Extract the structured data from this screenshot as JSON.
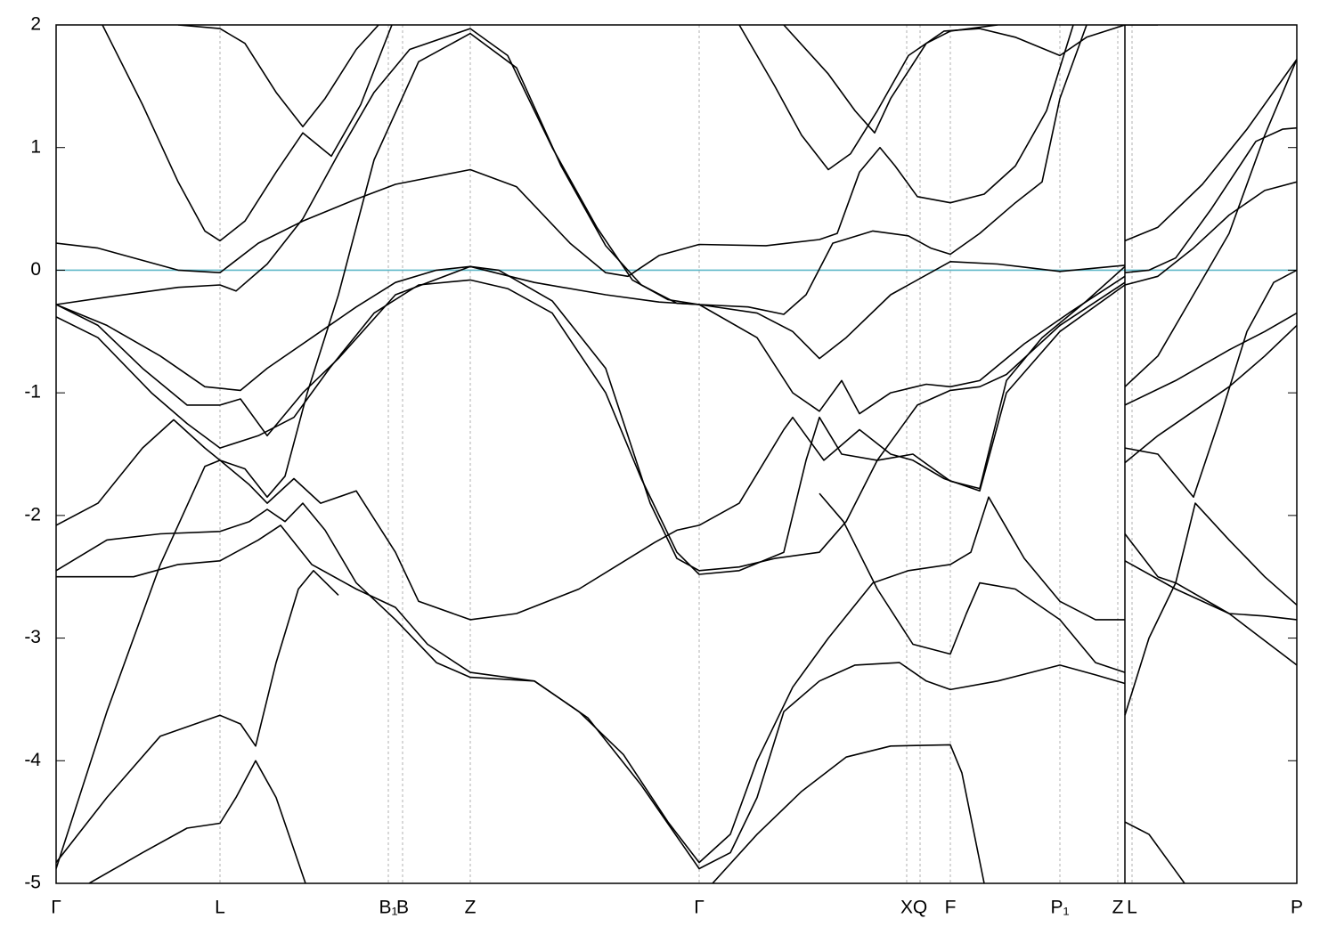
{
  "chart_data": {
    "type": "line",
    "xlim": [
      63,
      1456
    ],
    "ylim": [
      -5,
      2
    ],
    "yticks": [
      -5,
      -4,
      -3,
      -2,
      -1,
      0,
      1,
      2
    ],
    "xticks": [
      {
        "value": 63,
        "label": "Γ"
      },
      {
        "value": 247,
        "label": "L"
      },
      {
        "value": 436,
        "label": "B₁"
      },
      {
        "value": 452,
        "label": "B"
      },
      {
        "value": 528,
        "label": "Z"
      },
      {
        "value": 785,
        "label": "Γ"
      },
      {
        "value": 1018,
        "label": "X"
      },
      {
        "value": 1033,
        "label": "Q"
      },
      {
        "value": 1067,
        "label": "F"
      },
      {
        "value": 1190,
        "label": "P₁"
      },
      {
        "value": 1255,
        "label": "Z"
      },
      {
        "value": 1271,
        "label": "L"
      },
      {
        "value": 1456,
        "label": "P"
      }
    ],
    "xgrid": true,
    "hline": 0,
    "hline_color": "#5fb8c8",
    "series": [
      {
        "color": "#000000",
        "x": [
          115,
          160,
          200,
          230,
          247,
          275,
          310,
          340,
          372,
          405,
          440
        ],
        "values": [
          2,
          1.35,
          0.72,
          0.32,
          0.24,
          0.4,
          0.8,
          1.12,
          0.93,
          1.35,
          2
        ]
      },
      {
        "color": "#000000",
        "x": [
          200,
          247,
          275,
          310,
          340,
          365,
          400,
          425
        ],
        "values": [
          2,
          1.97,
          1.85,
          1.45,
          1.17,
          1.4,
          1.8,
          2
        ]
      },
      {
        "color": "#000000",
        "x": [
          63,
          110,
          160,
          200,
          247,
          290,
          340,
          400,
          444,
          528,
          580,
          640,
          680,
          705,
          740,
          785,
          860,
          920,
          940,
          965,
          988,
          1005,
          1030,
          1067,
          1105,
          1140,
          1175,
          1205
        ],
        "values": [
          0.22,
          0.18,
          0.08,
          0,
          -0.02,
          0.22,
          0.4,
          0.58,
          0.7,
          0.82,
          0.68,
          0.22,
          -0.02,
          -0.05,
          0.12,
          0.21,
          0.2,
          0.25,
          0.3,
          0.8,
          1,
          0.85,
          0.6,
          0.55,
          0.62,
          0.85,
          1.3,
          2
        ]
      },
      {
        "color": "#000000",
        "x": [
          830,
          870,
          900,
          930,
          955,
          985,
          1020,
          1060,
          1100,
          1140,
          1190,
          1220,
          1263
        ],
        "values": [
          2,
          1.5,
          1.1,
          0.82,
          0.95,
          1.3,
          1.75,
          1.95,
          1.97,
          1.9,
          1.75,
          1.9,
          2
        ]
      },
      {
        "color": "#000000",
        "x": [
          880,
          930,
          960,
          982,
          1000,
          1040,
          1067,
          1120
        ],
        "values": [
          2,
          1.6,
          1.3,
          1.12,
          1.4,
          1.85,
          1.95,
          2
        ]
      },
      {
        "color": "#000000",
        "x": [
          63,
          120,
          200,
          247,
          265,
          300,
          340,
          380,
          420,
          460,
          528,
          570,
          620,
          670,
          710,
          750,
          785,
          840,
          880,
          905,
          935,
          980,
          1020,
          1045,
          1067,
          1100,
          1140,
          1170,
          1190,
          1220
        ],
        "values": [
          -0.28,
          -0.22,
          -0.14,
          -0.12,
          -0.17,
          0.05,
          0.42,
          0.95,
          1.45,
          1.8,
          1.97,
          1.75,
          1,
          0.35,
          -0.08,
          -0.24,
          -0.28,
          -0.3,
          -0.36,
          -0.2,
          0.22,
          0.32,
          0.28,
          0.18,
          0.13,
          0.3,
          0.55,
          0.72,
          1.4,
          2
        ]
      },
      {
        "color": "#000000",
        "x": [
          63,
          120,
          180,
          230,
          247,
          275,
          300,
          320,
          345,
          380,
          420,
          470,
          528,
          580,
          630,
          680,
          720,
          760,
          785,
          850,
          890,
          920,
          950,
          1000,
          1067,
          1120,
          1190,
          1263
        ],
        "values": [
          -4.88,
          -3.6,
          -2.4,
          -1.6,
          -1.55,
          -1.62,
          -1.85,
          -1.68,
          -1,
          -0.2,
          0.9,
          1.7,
          1.93,
          1.65,
          0.85,
          0.2,
          -0.12,
          -0.27,
          -0.28,
          -0.35,
          -0.5,
          -0.72,
          -0.55,
          -0.2,
          0.07,
          0.05,
          -0.01,
          0.04
        ]
      },
      {
        "color": "#000000",
        "x": [
          63,
          120,
          180,
          230,
          270,
          300,
          350,
          400,
          444,
          490,
          528,
          560,
          620,
          680,
          730,
          760,
          785,
          830,
          870,
          920,
          950,
          985,
          1030,
          1067,
          1100,
          1130,
          1190,
          1263
        ],
        "values": [
          -0.28,
          -0.45,
          -0.7,
          -0.95,
          -0.98,
          -0.8,
          -0.55,
          -0.3,
          -0.1,
          0,
          0.03,
          0,
          -0.25,
          -0.8,
          -1.9,
          -2.35,
          -2.45,
          -2.42,
          -2.35,
          -2.3,
          -2.05,
          -1.55,
          -1.1,
          -0.98,
          -0.95,
          -0.85,
          -0.45,
          -0.1
        ]
      },
      {
        "color": "#000000",
        "x": [
          63,
          110,
          170,
          210,
          247,
          290,
          330,
          370,
          420,
          470,
          528,
          570,
          620,
          680,
          720,
          760,
          785,
          830,
          880,
          905,
          920,
          945,
          985,
          1025,
          1067,
          1100,
          1130,
          1170,
          1220,
          1263
        ],
        "values": [
          -0.38,
          -0.55,
          -1,
          -1.25,
          -1.45,
          -1.35,
          -1.2,
          -0.8,
          -0.35,
          -0.12,
          -0.08,
          -0.15,
          -0.35,
          -1,
          -1.7,
          -2.3,
          -2.48,
          -2.45,
          -2.3,
          -1.55,
          -1.2,
          -1.5,
          -1.55,
          -1.5,
          -1.72,
          -1.78,
          -0.9,
          -0.55,
          -0.25,
          0.03
        ]
      },
      {
        "color": "#000000",
        "x": [
          63,
          110,
          160,
          210,
          247,
          270,
          300,
          340,
          380,
          444,
          528,
          600,
          680,
          740,
          785,
          850,
          890,
          920,
          945,
          965,
          1000,
          1040,
          1067,
          1100,
          1150,
          1200,
          1263
        ],
        "values": [
          -0.28,
          -0.45,
          -0.8,
          -1.1,
          -1.1,
          -1.05,
          -1.35,
          -1,
          -0.72,
          -0.2,
          0.03,
          -0.1,
          -0.2,
          -0.26,
          -0.28,
          -0.55,
          -1,
          -1.15,
          -0.9,
          -1.17,
          -1,
          -0.93,
          -0.95,
          -0.9,
          -0.6,
          -0.35,
          -0.05
        ]
      },
      {
        "color": "#000000",
        "x": [
          63,
          110,
          160,
          195,
          230,
          247,
          280,
          300,
          330,
          360,
          400,
          444,
          470,
          528,
          580,
          650,
          735,
          760,
          785,
          830,
          880,
          890,
          925,
          965,
          1000,
          1025,
          1060,
          1100,
          1130,
          1190,
          1263
        ],
        "values": [
          -2.08,
          -1.9,
          -1.45,
          -1.22,
          -1.45,
          -1.55,
          -1.75,
          -1.9,
          -1.7,
          -1.9,
          -1.8,
          -2.3,
          -2.7,
          -2.85,
          -2.8,
          -2.6,
          -2.22,
          -2.12,
          -2.08,
          -1.9,
          -1.3,
          -1.2,
          -1.55,
          -1.3,
          -1.5,
          -1.55,
          -1.7,
          -1.8,
          -1,
          -0.5,
          -0.12
        ]
      },
      {
        "color": "#000000",
        "x": [
          63,
          120,
          180,
          247,
          280,
          300,
          320,
          340,
          365,
          400,
          444,
          490,
          528,
          600,
          650,
          700,
          750,
          785,
          820,
          850,
          890,
          930,
          980,
          1020,
          1067,
          1090,
          1110,
          1150,
          1190,
          1230,
          1263
        ],
        "values": [
          -2.45,
          -2.2,
          -2.15,
          -2.13,
          -2.05,
          -1.95,
          -2.05,
          -1.9,
          -2.12,
          -2.55,
          -2.85,
          -3.2,
          -3.32,
          -3.35,
          -3.6,
          -3.95,
          -4.5,
          -4.83,
          -4.6,
          -4,
          -3.4,
          -3,
          -2.55,
          -2.45,
          -2.4,
          -2.3,
          -1.85,
          -2.35,
          -2.7,
          -2.85,
          -2.85
        ]
      },
      {
        "color": "#000000",
        "x": [
          63,
          150,
          200,
          247,
          290,
          315,
          350,
          400,
          444,
          480,
          528,
          600,
          660,
          720,
          785,
          820,
          850,
          880,
          920,
          960,
          1010,
          1040,
          1067,
          1120,
          1190,
          1230,
          1263
        ],
        "values": [
          -2.5,
          -2.5,
          -2.4,
          -2.37,
          -2.2,
          -2.08,
          -2.4,
          -2.6,
          -2.75,
          -3.05,
          -3.28,
          -3.35,
          -3.65,
          -4.2,
          -4.88,
          -4.75,
          -4.3,
          -3.6,
          -3.35,
          -3.22,
          -3.2,
          -3.35,
          -3.42,
          -3.35,
          -3.22,
          -3.3,
          -3.37
        ]
      },
      {
        "color": "#000000",
        "x": [
          63,
          120,
          180,
          247,
          270,
          287,
          310,
          335,
          352,
          380
        ],
        "values": [
          -4.83,
          -4.3,
          -3.8,
          -3.63,
          -3.7,
          -3.88,
          -3.2,
          -2.6,
          -2.45,
          -2.65
        ]
      },
      {
        "color": "#000000",
        "x": [
          100,
          160,
          210,
          247,
          265,
          287,
          310,
          343
        ],
        "values": [
          -5,
          -4.75,
          -4.55,
          -4.51,
          -4.3,
          -4,
          -4.3,
          -5
        ]
      },
      {
        "color": "#000000",
        "x": [
          800,
          850,
          900,
          950,
          1000,
          1067,
          1080,
          1105
        ],
        "values": [
          -5,
          -4.6,
          -4.25,
          -3.97,
          -3.88,
          -3.87,
          -4.1,
          -5
        ]
      },
      {
        "color": "#000000",
        "x": [
          920,
          947,
          985,
          1025,
          1067,
          1085,
          1100,
          1140,
          1190,
          1230,
          1263
        ],
        "values": [
          -1.82,
          -2.05,
          -2.6,
          -3.05,
          -3.13,
          -2.8,
          -2.55,
          -2.6,
          -2.85,
          -3.2,
          -3.28
        ]
      },
      {
        "color": "#000000",
        "x": [
          1263,
          1300
        ],
        "values": [
          2,
          2
        ]
      },
      {
        "color": "#000000",
        "x": [
          1263,
          1300,
          1350,
          1400,
          1456
        ],
        "values": [
          0.24,
          0.35,
          0.7,
          1.15,
          1.72
        ]
      },
      {
        "color": "#000000",
        "x": [
          1263,
          1290,
          1320,
          1360,
          1410,
          1440,
          1456
        ],
        "values": [
          -0.02,
          0,
          0.1,
          0.5,
          1.05,
          1.15,
          1.16
        ]
      },
      {
        "color": "#000000",
        "x": [
          1263,
          1300,
          1340,
          1380,
          1420,
          1456
        ],
        "values": [
          -0.12,
          -0.05,
          0.18,
          0.45,
          0.65,
          0.72
        ]
      },
      {
        "color": "#000000",
        "x": [
          1263,
          1300,
          1340,
          1380,
          1420,
          1456
        ],
        "values": [
          -0.95,
          -0.7,
          -0.2,
          0.3,
          1.1,
          1.72
        ]
      },
      {
        "color": "#000000",
        "x": [
          1263,
          1320,
          1380,
          1420,
          1456
        ],
        "values": [
          -1.1,
          -0.9,
          -0.65,
          -0.5,
          -0.35
        ]
      },
      {
        "color": "#000000",
        "x": [
          1263,
          1300,
          1340,
          1370,
          1400,
          1430,
          1456
        ],
        "values": [
          -1.45,
          -1.5,
          -1.85,
          -1.2,
          -0.5,
          -0.1,
          0
        ]
      },
      {
        "color": "#000000",
        "x": [
          1263,
          1300,
          1340,
          1380,
          1420,
          1456
        ],
        "values": [
          -1.57,
          -1.35,
          -1.15,
          -0.95,
          -0.7,
          -0.45
        ]
      },
      {
        "color": "#000000",
        "x": [
          1263,
          1300,
          1320,
          1342,
          1380,
          1420,
          1456
        ],
        "values": [
          -2.15,
          -2.5,
          -2.55,
          -1.9,
          -2.2,
          -2.5,
          -2.73
        ]
      },
      {
        "color": "#000000",
        "x": [
          1263,
          1320,
          1380,
          1420,
          1456
        ],
        "values": [
          -2.37,
          -2.6,
          -2.8,
          -2.82,
          -2.85
        ]
      },
      {
        "color": "#000000",
        "x": [
          1263,
          1290,
          1320,
          1380,
          1456
        ],
        "values": [
          -3.63,
          -3,
          -2.55,
          -2.8,
          -3.22
        ]
      },
      {
        "color": "#000000",
        "x": [
          1263,
          1290,
          1320,
          1330
        ],
        "values": [
          -4.5,
          -4.6,
          -4.9,
          -5
        ]
      }
    ]
  }
}
